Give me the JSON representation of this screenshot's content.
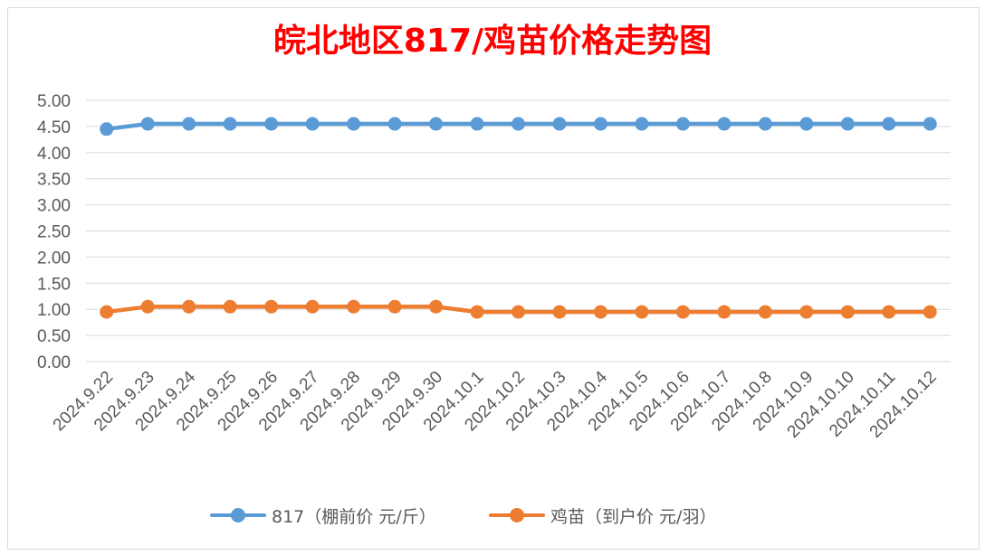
{
  "chart_data": {
    "type": "line",
    "title": "皖北地区817/鸡苗价格走势图",
    "title_color": "#ff0000",
    "x": [
      "2024.9.22",
      "2024.9.23",
      "2024.9.24",
      "2024.9.25",
      "2024.9.26",
      "2024.9.27",
      "2024.9.28",
      "2024.9.29",
      "2024.9.30",
      "2024.10.1",
      "2024.10.2",
      "2024.10.3",
      "2024.10.4",
      "2024.10.5",
      "2024.10.6",
      "2024.10.7",
      "2024.10.8",
      "2024.10.9",
      "2024.10.10",
      "2024.10.11",
      "2024.10.12"
    ],
    "series": [
      {
        "name": "817（棚前价 元/斤）",
        "color": "#5b9bd5",
        "values": [
          4.45,
          4.55,
          4.55,
          4.55,
          4.55,
          4.55,
          4.55,
          4.55,
          4.55,
          4.55,
          4.55,
          4.55,
          4.55,
          4.55,
          4.55,
          4.55,
          4.55,
          4.55,
          4.55,
          4.55,
          4.55
        ]
      },
      {
        "name": "鸡苗（到户价 元/羽）",
        "color": "#ed7d31",
        "values": [
          0.95,
          1.05,
          1.05,
          1.05,
          1.05,
          1.05,
          1.05,
          1.05,
          1.05,
          0.95,
          0.95,
          0.95,
          0.95,
          0.95,
          0.95,
          0.95,
          0.95,
          0.95,
          0.95,
          0.95,
          0.95
        ]
      }
    ],
    "yticks": [
      "5.00",
      "4.50",
      "4.00",
      "3.50",
      "3.00",
      "2.50",
      "2.00",
      "1.50",
      "1.00",
      "0.50",
      "0.00"
    ],
    "ylim": [
      0,
      5
    ],
    "grid": true,
    "legend_position": "bottom"
  }
}
